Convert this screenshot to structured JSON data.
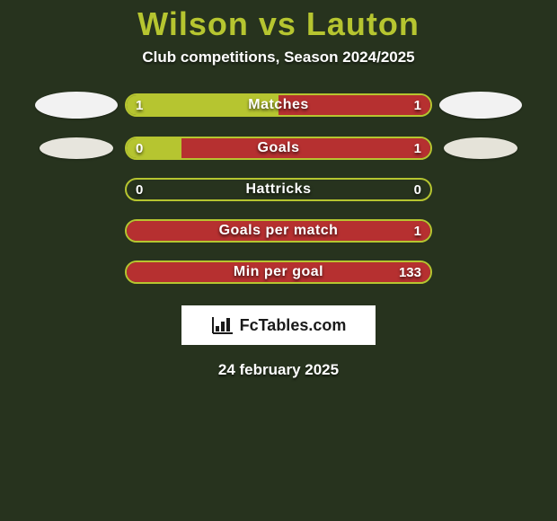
{
  "background_color": "#27331e",
  "title": {
    "text": "Wilson vs Lauton",
    "color": "#b6c530",
    "fontsize": 36
  },
  "subtitle": {
    "text": "Club competitions, Season 2024/2025",
    "color": "#ffffff",
    "fontsize": 17
  },
  "player_left": {
    "color_primary": "#f2f2f2",
    "color_secondary": "#e7e5dd"
  },
  "player_right": {
    "color_primary": "#f2f2f2",
    "color_secondary": "#e5e3d9"
  },
  "bar_style": {
    "border_color": "#b6c530",
    "height": 26,
    "radius": 14,
    "label_color": "#ffffff",
    "label_fontsize": 16,
    "value_fontsize": 15
  },
  "stats": [
    {
      "label": "Matches",
      "left_value": "1",
      "right_value": "1",
      "left_pct": 50,
      "right_pct": 50,
      "left_fill": "#b6c530",
      "right_fill": "#b63030",
      "show_bubbles": true
    },
    {
      "label": "Goals",
      "left_value": "0",
      "right_value": "1",
      "left_pct": 18,
      "right_pct": 82,
      "left_fill": "#b6c530",
      "right_fill": "#b63030",
      "show_bubbles": true
    },
    {
      "label": "Hattricks",
      "left_value": "0",
      "right_value": "0",
      "left_pct": 0,
      "right_pct": 0,
      "left_fill": "#b6c530",
      "right_fill": "#b63030",
      "show_bubbles": false
    },
    {
      "label": "Goals per match",
      "left_value": "",
      "right_value": "1",
      "left_pct": 0,
      "right_pct": 100,
      "left_fill": "#b6c530",
      "right_fill": "#b63030",
      "show_bubbles": false
    },
    {
      "label": "Min per goal",
      "left_value": "",
      "right_value": "133",
      "left_pct": 0,
      "right_pct": 100,
      "left_fill": "#b6c530",
      "right_fill": "#b63030",
      "show_bubbles": false
    }
  ],
  "brand": {
    "text": "FcTables.com",
    "icon_color": "#1a1a1a"
  },
  "date": {
    "text": "24 february 2025",
    "color": "#ffffff",
    "fontsize": 17
  }
}
